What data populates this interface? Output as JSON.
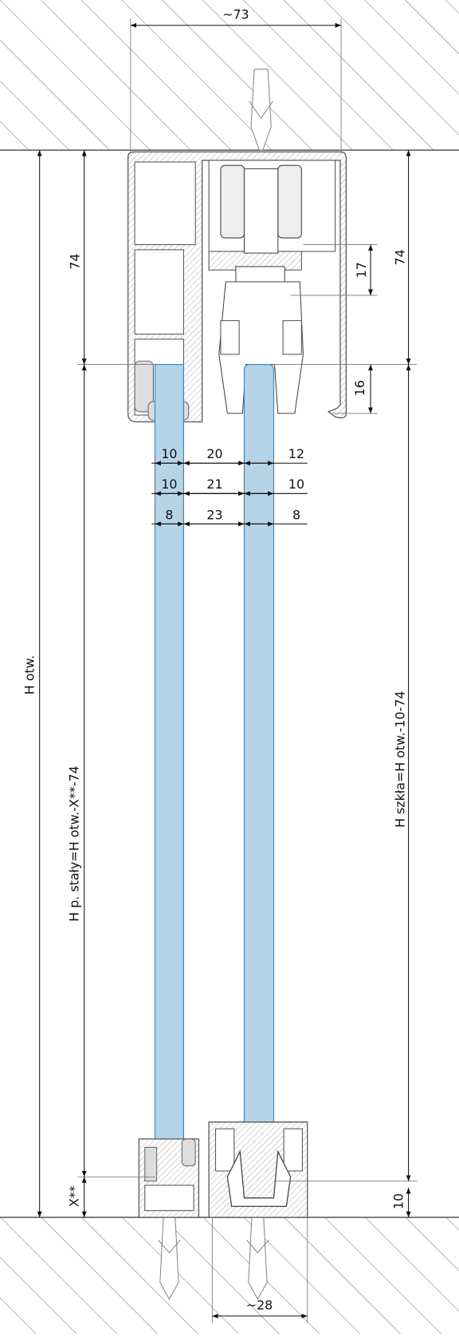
{
  "dimensions": {
    "overall_width": "~73",
    "top_profile_height_left": "74",
    "top_profile_height_right": "74",
    "carriage_offset": "17",
    "glass_insert_depth": "16",
    "row1": [
      "10",
      "20",
      "12"
    ],
    "row2": [
      "10",
      "21",
      "10"
    ],
    "row3": [
      "8",
      "23",
      "8"
    ],
    "opening_height": "H otw.",
    "fixed_panel_height": "H p. stały=H otw.-X**-74",
    "glass_height": "H szkła=H otw.-10-74",
    "bottom_gap": "X**",
    "bottom_clearance": "10",
    "bottom_rail_width": "~28"
  }
}
